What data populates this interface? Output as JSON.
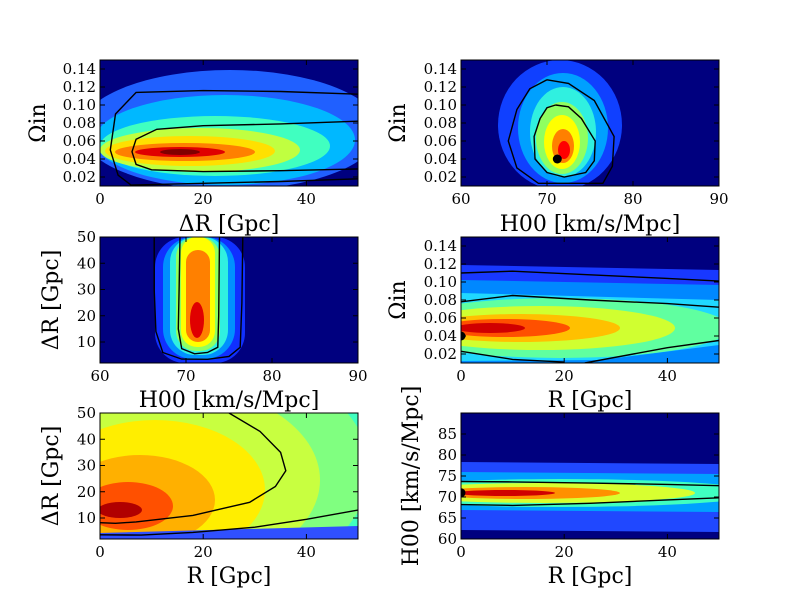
{
  "figure": {
    "colormap": [
      "#00007f",
      "#0000ff",
      "#007fff",
      "#00ffff",
      "#7fff7f",
      "#ffff00",
      "#ff7f00",
      "#ff0000",
      "#7f0000"
    ],
    "contour_color": "#000000",
    "marker_color": "#000000"
  },
  "chart_data": [
    {
      "id": "p1",
      "type": "heatmap",
      "subtype": "likelihood-contour",
      "xlabel": "ΔR [Gpc]",
      "ylabel": "Ωin",
      "xlim": [
        0,
        50
      ],
      "ylim": [
        0.01,
        0.15
      ],
      "xticks": [
        {
          "value": 0,
          "label": "0"
        },
        {
          "value": 20,
          "label": "20"
        },
        {
          "value": 40,
          "label": "40"
        }
      ],
      "yticks": [
        {
          "value": 0.02,
          "label": "0.02"
        },
        {
          "value": 0.04,
          "label": "0.04"
        },
        {
          "value": 0.06,
          "label": "0.06"
        },
        {
          "value": 0.08,
          "label": "0.08"
        },
        {
          "value": 0.1,
          "label": "0.10"
        },
        {
          "value": 0.12,
          "label": "0.12"
        },
        {
          "value": 0.14,
          "label": "0.14"
        }
      ],
      "peak": {
        "x": 16,
        "y": 0.047
      },
      "contours": [
        [
          [
            50,
            0.082
          ],
          [
            35,
            0.079
          ],
          [
            20,
            0.077
          ],
          [
            11,
            0.073
          ],
          [
            7,
            0.062
          ],
          [
            6.2,
            0.048
          ],
          [
            7,
            0.034
          ],
          [
            10,
            0.028
          ],
          [
            20,
            0.026
          ],
          [
            35,
            0.027
          ],
          [
            50,
            0.029
          ]
        ],
        [
          [
            50,
            0.112
          ],
          [
            35,
            0.115
          ],
          [
            20,
            0.116
          ],
          [
            7,
            0.114
          ],
          [
            3,
            0.09
          ],
          [
            2,
            0.05
          ],
          [
            3.5,
            0.022
          ],
          [
            6,
            0.011
          ],
          [
            20,
            0.013
          ],
          [
            35,
            0.015
          ],
          [
            50,
            0.018
          ]
        ]
      ]
    },
    {
      "id": "p2",
      "type": "heatmap",
      "subtype": "likelihood-contour",
      "xlabel": "H00 [km/s/Mpc]",
      "ylabel": "Ωin",
      "xlim": [
        60,
        90
      ],
      "ylim": [
        0.01,
        0.15
      ],
      "xticks": [
        {
          "value": 60,
          "label": "60"
        },
        {
          "value": 70,
          "label": "70"
        },
        {
          "value": 80,
          "label": "80"
        },
        {
          "value": 90,
          "label": "90"
        }
      ],
      "yticks": [
        {
          "value": 0.02,
          "label": "0.02"
        },
        {
          "value": 0.04,
          "label": "0.04"
        },
        {
          "value": 0.06,
          "label": "0.06"
        },
        {
          "value": 0.08,
          "label": "0.08"
        },
        {
          "value": 0.1,
          "label": "0.10"
        },
        {
          "value": 0.12,
          "label": "0.12"
        },
        {
          "value": 0.14,
          "label": "0.14"
        }
      ],
      "peak": {
        "x": 72.2,
        "y": 0.045
      },
      "markers": [
        {
          "x": 71.2,
          "y": 0.04
        }
      ],
      "contours": [
        [
          [
            71,
            0.1
          ],
          [
            72.5,
            0.098
          ],
          [
            74,
            0.085
          ],
          [
            75.6,
            0.06
          ],
          [
            75.5,
            0.038
          ],
          [
            74.5,
            0.025
          ],
          [
            72,
            0.02
          ],
          [
            70,
            0.025
          ],
          [
            68.6,
            0.04
          ],
          [
            68.5,
            0.065
          ],
          [
            69.2,
            0.085
          ],
          [
            70,
            0.097
          ],
          [
            71,
            0.1
          ]
        ],
        [
          [
            70,
            0.128
          ],
          [
            72.5,
            0.124
          ],
          [
            75.5,
            0.105
          ],
          [
            77.8,
            0.065
          ],
          [
            77.6,
            0.032
          ],
          [
            76.5,
            0.013
          ],
          [
            69,
            0.013
          ],
          [
            66.5,
            0.03
          ],
          [
            65.5,
            0.06
          ],
          [
            66.5,
            0.095
          ],
          [
            68,
            0.118
          ],
          [
            70,
            0.128
          ]
        ]
      ]
    },
    {
      "id": "p3",
      "type": "heatmap",
      "subtype": "likelihood-contour",
      "xlabel": "H00 [km/s/Mpc]",
      "ylabel": "ΔR [Gpc]",
      "xlim": [
        60,
        90
      ],
      "ylim": [
        2,
        50
      ],
      "xticks": [
        {
          "value": 60,
          "label": "60"
        },
        {
          "value": 70,
          "label": "70"
        },
        {
          "value": 80,
          "label": "80"
        },
        {
          "value": 90,
          "label": "90"
        }
      ],
      "yticks": [
        {
          "value": 10,
          "label": "10"
        },
        {
          "value": 20,
          "label": "20"
        },
        {
          "value": 30,
          "label": "30"
        },
        {
          "value": 40,
          "label": "40"
        },
        {
          "value": 50,
          "label": "50"
        }
      ],
      "peak": {
        "x": 71.5,
        "y": 18
      },
      "contours": [
        [
          [
            69.3,
            50
          ],
          [
            69.2,
            30
          ],
          [
            69.1,
            15
          ],
          [
            69.5,
            7.5
          ],
          [
            71,
            5.5
          ],
          [
            72.5,
            6
          ],
          [
            73.7,
            8
          ],
          [
            73.8,
            20
          ],
          [
            73.9,
            50
          ]
        ],
        [
          [
            66.3,
            50
          ],
          [
            66.3,
            30
          ],
          [
            66.5,
            14
          ],
          [
            67.3,
            6
          ],
          [
            69.5,
            3.5
          ],
          [
            72.5,
            3.4
          ],
          [
            75,
            4.5
          ],
          [
            76.3,
            8
          ],
          [
            76.5,
            25
          ],
          [
            76.6,
            50
          ]
        ]
      ]
    },
    {
      "id": "p4",
      "type": "heatmap",
      "subtype": "likelihood-contour",
      "xlabel": "R [Gpc]",
      "ylabel": "Ωin",
      "xlim": [
        0,
        50
      ],
      "ylim": [
        0.01,
        0.15
      ],
      "xticks": [
        {
          "value": 0,
          "label": "0"
        },
        {
          "value": 20,
          "label": "20"
        },
        {
          "value": 40,
          "label": "40"
        }
      ],
      "yticks": [
        {
          "value": 0.02,
          "label": "0.02"
        },
        {
          "value": 0.04,
          "label": "0.04"
        },
        {
          "value": 0.06,
          "label": "0.06"
        },
        {
          "value": 0.08,
          "label": "0.08"
        },
        {
          "value": 0.1,
          "label": "0.10"
        },
        {
          "value": 0.12,
          "label": "0.12"
        },
        {
          "value": 0.14,
          "label": "0.14"
        }
      ],
      "peak": {
        "x": 4,
        "y": 0.048
      },
      "markers": [
        {
          "x": 0,
          "y": 0.04
        }
      ],
      "contours": [
        [
          [
            0,
            0.11
          ],
          [
            10,
            0.112
          ],
          [
            25,
            0.108
          ],
          [
            40,
            0.104
          ],
          [
            50,
            0.101
          ]
        ],
        [
          [
            0,
            0.078
          ],
          [
            10,
            0.085
          ],
          [
            25,
            0.08
          ],
          [
            40,
            0.076
          ],
          [
            50,
            0.072
          ]
        ],
        [
          [
            0,
            0.023
          ],
          [
            10,
            0.014
          ],
          [
            20,
            0.011
          ]
        ],
        [
          [
            24,
            0.01
          ],
          [
            40,
            0.027
          ],
          [
            50,
            0.035
          ]
        ]
      ]
    },
    {
      "id": "p5",
      "type": "heatmap",
      "subtype": "likelihood-contour",
      "xlabel": "R [Gpc]",
      "ylabel": "ΔR [Gpc]",
      "xlim": [
        0,
        50
      ],
      "ylim": [
        2,
        50
      ],
      "xticks": [
        {
          "value": 0,
          "label": "0"
        },
        {
          "value": 20,
          "label": "20"
        },
        {
          "value": 40,
          "label": "40"
        }
      ],
      "yticks": [
        {
          "value": 10,
          "label": "10"
        },
        {
          "value": 20,
          "label": "20"
        },
        {
          "value": 30,
          "label": "30"
        },
        {
          "value": 40,
          "label": "40"
        },
        {
          "value": 50,
          "label": "50"
        }
      ],
      "peak": {
        "x": 6,
        "y": 12
      },
      "contours": [
        [
          [
            25,
            50
          ],
          [
            31,
            43
          ],
          [
            35,
            35
          ],
          [
            36,
            28
          ],
          [
            34,
            22
          ],
          [
            29,
            16
          ],
          [
            18,
            11
          ],
          [
            7,
            8.5
          ],
          [
            3,
            8
          ],
          [
            0,
            8.2
          ]
        ],
        [
          [
            0,
            3.6
          ],
          [
            8,
            3.5
          ],
          [
            18,
            4.5
          ],
          [
            30,
            6.5
          ],
          [
            40,
            9.5
          ],
          [
            50,
            13
          ]
        ]
      ]
    },
    {
      "id": "p6",
      "type": "heatmap",
      "subtype": "likelihood-contour",
      "xlabel": "R [Gpc]",
      "ylabel": "H00 [km/s/Mpc]",
      "xlim": [
        0,
        50
      ],
      "ylim": [
        60,
        90
      ],
      "xticks": [
        {
          "value": 0,
          "label": "0"
        },
        {
          "value": 20,
          "label": "20"
        },
        {
          "value": 40,
          "label": "40"
        }
      ],
      "yticks": [
        {
          "value": 60,
          "label": "60"
        },
        {
          "value": 65,
          "label": "65"
        },
        {
          "value": 70,
          "label": "70"
        },
        {
          "value": 75,
          "label": "75"
        },
        {
          "value": 80,
          "label": "80"
        },
        {
          "value": 85,
          "label": "85"
        }
      ],
      "peak": {
        "x": 8,
        "y": 71
      },
      "markers": [
        {
          "x": 0,
          "y": 71
        }
      ],
      "contours": [
        [
          [
            0,
            73.7
          ],
          [
            10,
            73.6
          ],
          [
            25,
            73.3
          ],
          [
            40,
            73.0
          ],
          [
            50,
            72.7
          ]
        ],
        [
          [
            0,
            68.2
          ],
          [
            10,
            68.0
          ],
          [
            25,
            68.5
          ],
          [
            40,
            69.3
          ],
          [
            50,
            69.8
          ]
        ]
      ]
    }
  ]
}
